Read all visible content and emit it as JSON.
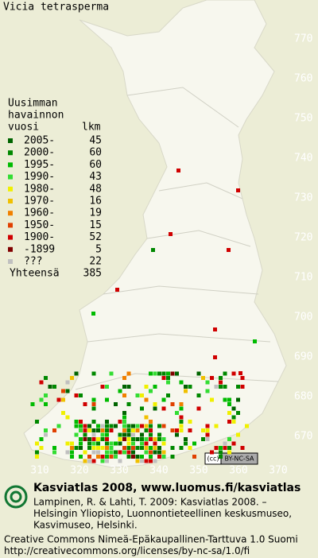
{
  "title": "Vicia tetrasperma",
  "legend": {
    "header": [
      "Uusimman",
      "havainnon",
      "vuosi"
    ],
    "count_header": "lkm",
    "rows": [
      {
        "label": "2005-",
        "count": "45",
        "color": "#006400"
      },
      {
        "label": "2000-",
        "count": "60",
        "color": "#008800"
      },
      {
        "label": "1995-",
        "count": "60",
        "color": "#00bb00"
      },
      {
        "label": "1990-",
        "count": "43",
        "color": "#33dd33"
      },
      {
        "label": "1980-",
        "count": "48",
        "color": "#f0f000"
      },
      {
        "label": "1970-",
        "count": "16",
        "color": "#f0c000"
      },
      {
        "label": "1960-",
        "count": "19",
        "color": "#f08000"
      },
      {
        "label": "1950-",
        "count": "15",
        "color": "#e04000"
      },
      {
        "label": "1900-",
        "count": "52",
        "color": "#d00000"
      },
      {
        "label": "-1899",
        "count": "5",
        "color": "#800000"
      },
      {
        "label": "???",
        "count": "22",
        "color": "#c0c0c0"
      }
    ],
    "total_label": "Yhteensä",
    "total": "385"
  },
  "axes": {
    "y_ticks": [
      "770",
      "760",
      "750",
      "740",
      "730",
      "720",
      "710",
      "700",
      "690",
      "680",
      "670"
    ],
    "x_ticks": [
      "310",
      "320",
      "330",
      "340",
      "350",
      "360",
      "370"
    ]
  },
  "footer": {
    "badge": [
      "(cc)",
      "BY-NC-SA"
    ],
    "site": "Kasviatlas 2008, www.luomus.fi/kasviatlas",
    "citation": [
      "Lampinen, R. & Lahti, T. 2009: Kasviatlas 2008. –",
      "Helsingin Yliopisto, Luonnontieteellinen keskusmuseo,",
      "Kasvimuseo, Helsinki."
    ],
    "license": [
      "Creative Commons Nimeä-Epäkaupallinen-Tarttuva 1.0 Suomi",
      "http://creativecommons.org/licenses/by-nc-sa/1.0/fi"
    ]
  }
}
